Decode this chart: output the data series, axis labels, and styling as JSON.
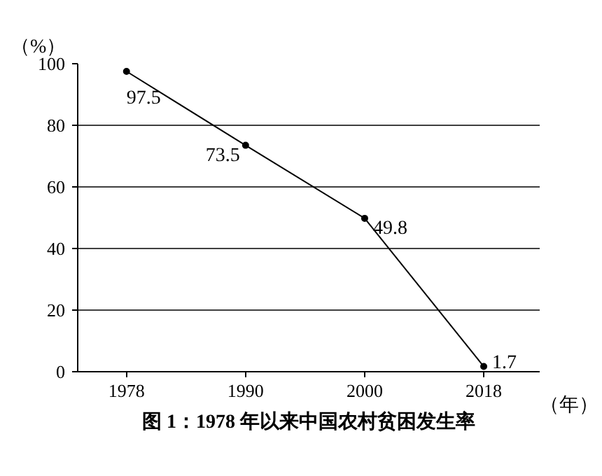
{
  "chart_data": {
    "type": "line",
    "title": "图 1：1978 年以来中国农村贫困发生率",
    "ylabel": "（%）",
    "xlabel": "（年）",
    "categories": [
      "1978",
      "1990",
      "2000",
      "2018"
    ],
    "series": [
      {
        "color": "#000000",
        "values": [
          97.5,
          73.5,
          49.8,
          1.7
        ]
      }
    ],
    "ylim": [
      0,
      100
    ],
    "yticks": [
      0,
      20,
      40,
      60,
      80,
      100
    ],
    "grid": "y",
    "data_labels": true,
    "marker": "circle"
  }
}
